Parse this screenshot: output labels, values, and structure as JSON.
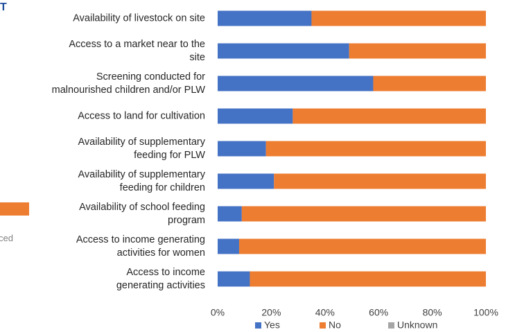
{
  "cropped_text": [
    "T",
    "ced"
  ],
  "chart_data": {
    "type": "stacked-bar-horizontal",
    "categories": [
      "Availability of livestock on site",
      "Access to a market near to the\nsite",
      "Screening conducted for\nmalnourished children and/or PLW",
      "Access to land for cultivation",
      "Availability of supplementary\nfeeding for PLW",
      "Availability of supplementary\nfeeding for children",
      "Availability of school feeding\nprogram",
      "Access to income generating\nactivities for women",
      "Access to income\ngenerating activities"
    ],
    "series": [
      {
        "name": "Yes",
        "color": "#4472c4",
        "values": [
          35,
          49,
          58,
          28,
          18,
          21,
          9,
          8,
          12
        ]
      },
      {
        "name": "No",
        "color": "#ed7d31",
        "values": [
          65,
          51,
          42,
          72,
          82,
          79,
          91,
          92,
          88
        ]
      },
      {
        "name": "Unknown",
        "color": "#a5a5a5",
        "values": [
          0,
          0,
          0,
          0,
          0,
          0,
          0,
          0,
          0
        ]
      }
    ],
    "xlim": [
      0,
      100
    ],
    "xticks": [
      {
        "value": 0,
        "label": "0%"
      },
      {
        "value": 20,
        "label": "20%"
      },
      {
        "value": 40,
        "label": "40%"
      },
      {
        "value": 60,
        "label": "60%"
      },
      {
        "value": 80,
        "label": "80%"
      },
      {
        "value": 100,
        "label": "100%"
      }
    ],
    "legend": "bottom"
  }
}
